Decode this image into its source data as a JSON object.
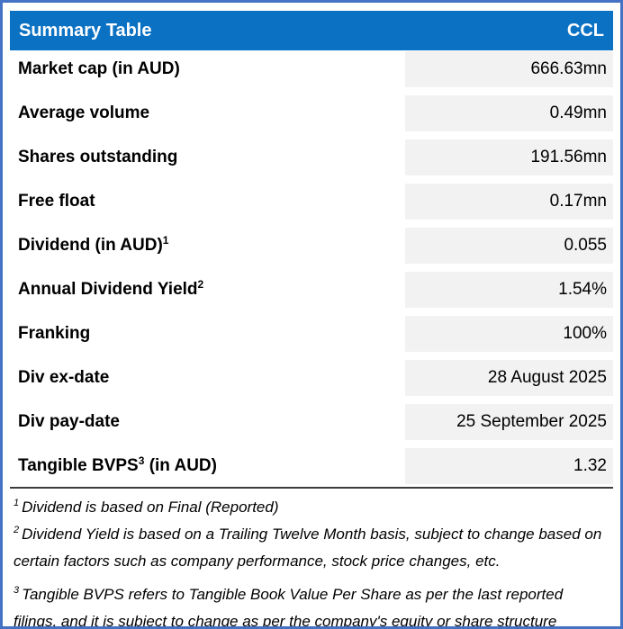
{
  "header": {
    "title": "Summary Table",
    "ticker": "CCL"
  },
  "rows": [
    {
      "label_pre": "Market cap (in AUD)",
      "label_sup": "",
      "label_post": "",
      "value": "666.63mn"
    },
    {
      "label_pre": "Average volume",
      "label_sup": "",
      "label_post": "",
      "value": "0.49mn"
    },
    {
      "label_pre": "Shares outstanding",
      "label_sup": "",
      "label_post": "",
      "value": "191.56mn"
    },
    {
      "label_pre": "Free float",
      "label_sup": "",
      "label_post": "",
      "value": "0.17mn"
    },
    {
      "label_pre": "Dividend (in AUD)",
      "label_sup": "1",
      "label_post": "",
      "value": "0.055"
    },
    {
      "label_pre": "Annual Dividend Yield",
      "label_sup": "2",
      "label_post": "",
      "value": "1.54%"
    },
    {
      "label_pre": "Franking",
      "label_sup": "",
      "label_post": "",
      "value": "100%"
    },
    {
      "label_pre": "Div ex-date",
      "label_sup": "",
      "label_post": "",
      "value": "28 August 2025"
    },
    {
      "label_pre": "Div pay-date",
      "label_sup": "",
      "label_post": "",
      "value": "25 September 2025"
    },
    {
      "label_pre": "Tangible BVPS",
      "label_sup": "3",
      "label_post": " (in AUD)",
      "value": "1.32"
    }
  ],
  "footnotes": [
    {
      "sup": "1",
      "text": "Dividend is based on Final (Reported)"
    },
    {
      "sup": "2",
      "text": "Dividend Yield is based on a Trailing Twelve Month basis, subject to change based on certain factors such as company performance, stock price changes, etc."
    },
    {
      "sup": "3",
      "text": "Tangible BVPS refers to Tangible Book Value Per Share as per the last reported filings, and it is subject to change as per the company's equity or share structure changes."
    }
  ],
  "colors": {
    "outer_border": "#4472C4",
    "header_bg": "#0B71C3",
    "header_text": "#FFFFFF",
    "value_cell_bg": "#F2F2F2",
    "divider": "#3C3C3C",
    "text": "#000000"
  }
}
